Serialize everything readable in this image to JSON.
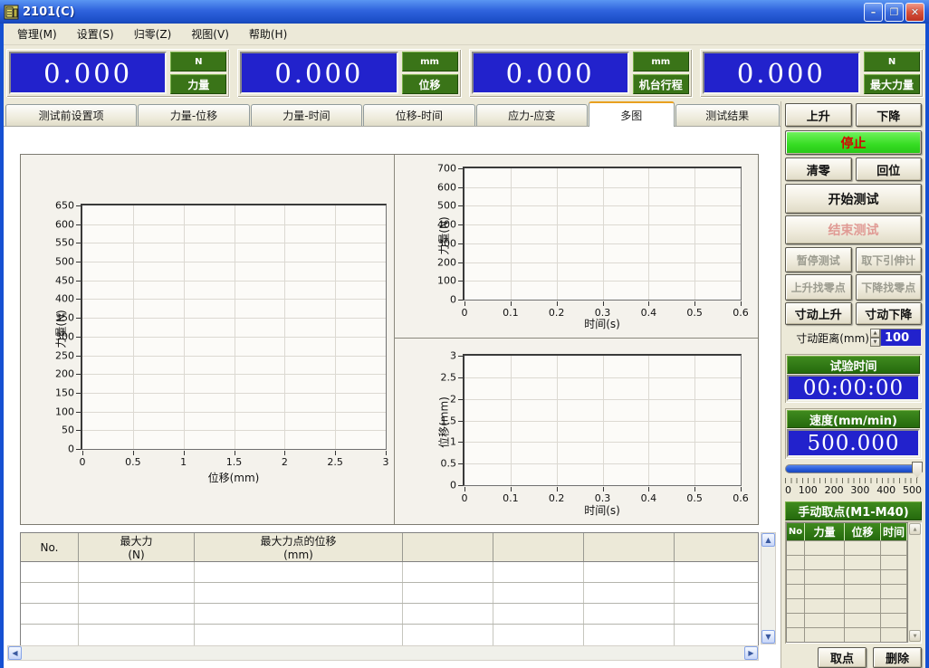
{
  "window": {
    "title": "2101(C)",
    "controls": {
      "minimize": "–",
      "maximize": "❐",
      "close": "✕"
    }
  },
  "menu": {
    "items": [
      "管理(M)",
      "设置(S)",
      "归零(Z)",
      "视图(V)",
      "帮助(H)"
    ]
  },
  "displays": [
    {
      "value": "0.000",
      "unit": "N",
      "label": "力量"
    },
    {
      "value": "0.000",
      "unit": "mm",
      "label": "位移"
    },
    {
      "value": "0.000",
      "unit": "mm",
      "label": "机台行程"
    },
    {
      "value": "0.000",
      "unit": "N",
      "label": "最大力量"
    }
  ],
  "tabs": {
    "items": [
      "测试前设置项",
      "力量-位移",
      "力量-时间",
      "位移-时间",
      "应力-应变",
      "多图",
      "测试结果"
    ],
    "active_index": 5
  },
  "panel": {
    "up": "上升",
    "down": "下降",
    "stop": "停止",
    "clear_zero": "清零",
    "return_home": "回位",
    "start_test": "开始测试",
    "end_test": "结束测试",
    "pause_test": "暂停测试",
    "remove_extensometer": "取下引伸计",
    "up_find_zero": "上升找零点",
    "down_find_zero": "下降找零点",
    "jog_up": "寸动上升",
    "jog_down": "寸动下降"
  },
  "jog": {
    "label": "寸动距离(mm)",
    "value": "100"
  },
  "timer": {
    "label": "试验时间",
    "value": "00:00:00"
  },
  "speed": {
    "label": "速度(mm/min)",
    "value": "500.000",
    "slider_labels": [
      "0",
      "100",
      "200",
      "300",
      "400",
      "500"
    ],
    "slider_value": 500,
    "slider_min": 0,
    "slider_max": 500
  },
  "manual": {
    "title": "手动取点(M1-M40)",
    "headers": [
      "No",
      "力量",
      "位移",
      "时间"
    ],
    "row_count": 7,
    "take_point": "取点",
    "delete": "删除"
  },
  "results": {
    "columns": [
      {
        "title": "No.",
        "unit": ""
      },
      {
        "title": "最大力",
        "unit": "(N)"
      },
      {
        "title": "最大力点的位移",
        "unit": "(mm)"
      },
      {
        "title": "",
        "unit": ""
      },
      {
        "title": "",
        "unit": ""
      },
      {
        "title": "",
        "unit": ""
      },
      {
        "title": "",
        "unit": ""
      }
    ],
    "row_count": 4
  },
  "icons": {
    "scroll_up": "▲",
    "scroll_down": "▼",
    "scroll_left": "◀",
    "scroll_right": "▶",
    "spinner_up": "▲",
    "spinner_down": "▼"
  },
  "colors": {
    "lcd_blue": "#2222cc",
    "tag_green": "#3a7418",
    "header_green": "#2f6e12",
    "stop_green": "#35dc22",
    "stop_text_red": "#d80000",
    "titlebar_blue": "#2f63dd",
    "panel_beige": "#ece9d8",
    "active_tab_accent": "#e8a020",
    "slider_blue": "#2458d8"
  },
  "chart_data": [
    {
      "type": "line",
      "title": "",
      "xlabel": "位移(mm)",
      "ylabel": "力量(N)",
      "xlim": [
        0,
        3
      ],
      "ylim": [
        0,
        650
      ],
      "xticks": [
        0,
        0.5,
        1,
        1.5,
        2,
        2.5,
        3
      ],
      "yticks": [
        0,
        50,
        100,
        150,
        200,
        250,
        300,
        350,
        400,
        450,
        500,
        550,
        600,
        650
      ],
      "grid": true,
      "legend": false,
      "series": []
    },
    {
      "type": "line",
      "title": "",
      "xlabel": "时间(s)",
      "ylabel": "力量(N)",
      "xlim": [
        0,
        0.6
      ],
      "ylim": [
        0,
        700
      ],
      "xticks": [
        0,
        0.1,
        0.2,
        0.3,
        0.4,
        0.5,
        0.6
      ],
      "yticks": [
        0,
        100,
        200,
        300,
        400,
        500,
        600,
        700
      ],
      "grid": true,
      "legend": false,
      "series": []
    },
    {
      "type": "line",
      "title": "",
      "xlabel": "时间(s)",
      "ylabel": "位移(mm)",
      "xlim": [
        0,
        0.6
      ],
      "ylim": [
        0,
        3
      ],
      "xticks": [
        0,
        0.1,
        0.2,
        0.3,
        0.4,
        0.5,
        0.6
      ],
      "yticks": [
        0,
        0.5,
        1,
        1.5,
        2,
        2.5,
        3
      ],
      "grid": true,
      "legend": false,
      "series": []
    }
  ]
}
